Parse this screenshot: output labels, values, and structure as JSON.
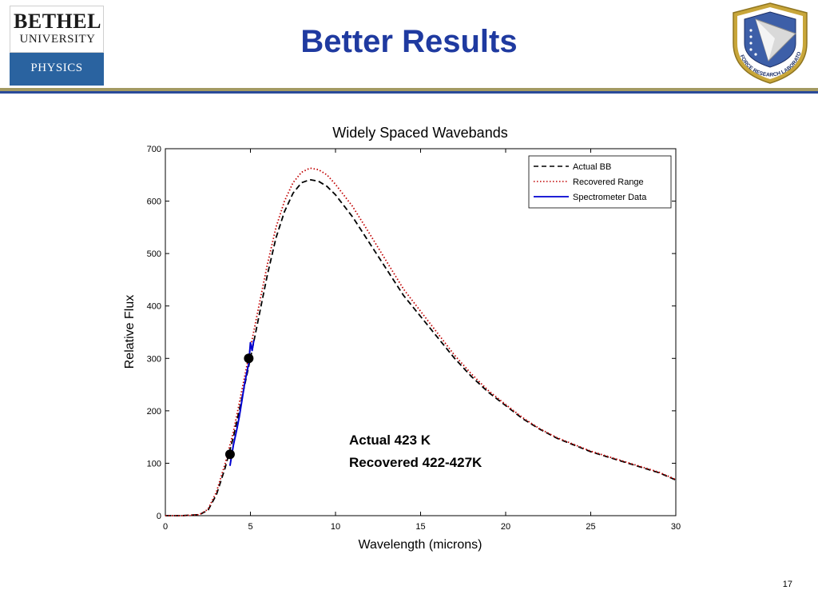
{
  "header": {
    "title": "Better Results",
    "logo": {
      "line1": "BETHEL",
      "line2": "UNIVERSITY",
      "dept": "PHYSICS"
    },
    "seal_text": "AIR FORCE RESEARCH LABORATORY"
  },
  "colors": {
    "title": "#1f3aa0",
    "logo_blue": "#2a63a0",
    "rule_gold": "#a39a62",
    "rule_blue": "#2a4a9a",
    "actual": "#000000",
    "recovered": "#c00000",
    "spectrometer": "#0000d0"
  },
  "annotation": {
    "line1": "Actual 423 K",
    "line2": "Recovered 422-427K"
  },
  "page_number": "17",
  "chart_data": {
    "type": "line",
    "title": "Widely Spaced Wavebands",
    "xlabel": "Wavelength (microns)",
    "ylabel": "Relative Flux",
    "xlim": [
      0,
      30
    ],
    "ylim": [
      0,
      700
    ],
    "xticks": [
      0,
      5,
      10,
      15,
      20,
      25,
      30
    ],
    "yticks": [
      0,
      100,
      200,
      300,
      400,
      500,
      600,
      700
    ],
    "grid": false,
    "legend_position": "top-right",
    "series": [
      {
        "name": "Actual BB",
        "style": "dashed",
        "color": "#000000",
        "x": [
          0,
          1,
          2,
          2.5,
          3,
          3.5,
          4,
          4.5,
          5,
          5.5,
          6,
          6.5,
          7,
          7.5,
          8,
          8.5,
          9,
          9.5,
          10,
          11,
          12,
          13,
          14,
          15,
          16,
          17,
          18,
          19,
          20,
          21,
          22,
          23,
          24,
          25,
          26,
          27,
          28,
          29,
          30
        ],
        "y": [
          0,
          0,
          2,
          10,
          40,
          90,
          150,
          225,
          300,
          380,
          460,
          530,
          580,
          615,
          635,
          641,
          638,
          628,
          612,
          570,
          520,
          470,
          420,
          380,
          340,
          300,
          265,
          235,
          210,
          185,
          165,
          148,
          135,
          122,
          112,
          102,
          92,
          82,
          68
        ]
      },
      {
        "name": "Recovered Range",
        "style": "dotted",
        "color": "#c00000",
        "x": [
          0,
          1,
          2,
          2.5,
          3,
          3.5,
          4,
          4.5,
          5,
          5.5,
          6,
          6.5,
          7,
          7.5,
          8,
          8.5,
          9,
          9.5,
          10,
          11,
          12,
          13,
          14,
          15,
          16,
          17,
          18,
          19,
          20,
          21,
          22,
          23,
          24,
          25,
          26,
          27,
          28,
          29,
          30
        ],
        "y": [
          0,
          0,
          2,
          12,
          45,
          98,
          160,
          240,
          320,
          400,
          480,
          550,
          600,
          635,
          655,
          663,
          660,
          650,
          632,
          590,
          538,
          485,
          432,
          390,
          348,
          306,
          270,
          238,
          212,
          187,
          166,
          149,
          136,
          123,
          113,
          103,
          93,
          83,
          69
        ]
      },
      {
        "name": "Spectrometer Data",
        "style": "solid",
        "color": "#0000d0",
        "x": [
          3.8,
          4.0,
          4.2,
          4.35,
          4.5,
          4.65,
          4.8,
          4.9,
          5.0,
          5.1,
          5.2
        ],
        "y": [
          95,
          135,
          165,
          190,
          220,
          250,
          275,
          290,
          330,
          315,
          335
        ]
      }
    ],
    "points": [
      {
        "x": 3.8,
        "y": 117
      },
      {
        "x": 4.9,
        "y": 300
      }
    ]
  }
}
